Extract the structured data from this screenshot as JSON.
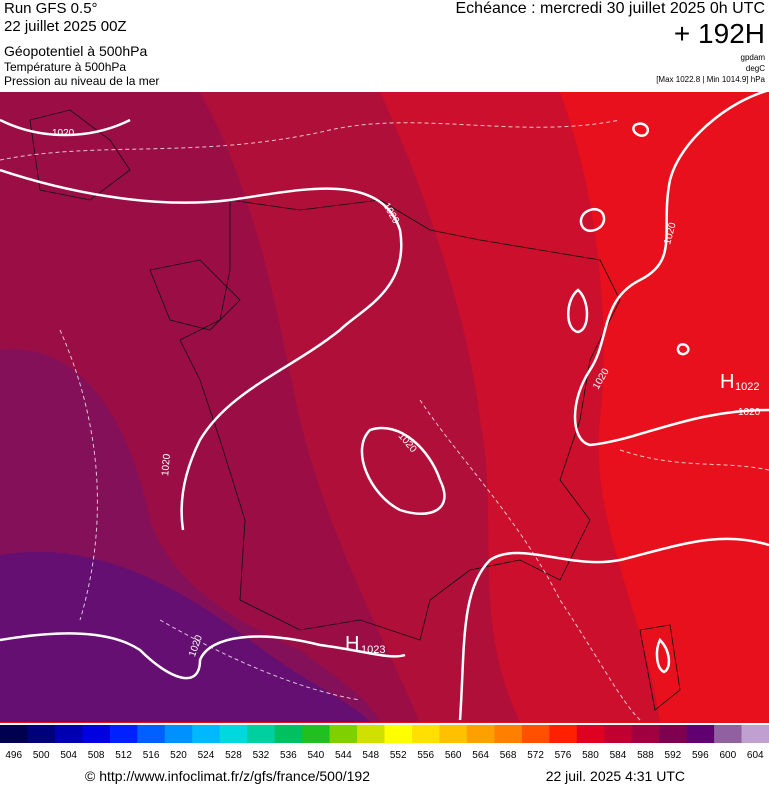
{
  "header": {
    "run": "Run GFS 0.5°",
    "date": "22 juillet 2025 00Z",
    "layer1": "Géopotentiel à 500hPa",
    "layer2": "Température à 500hPa",
    "layer3": "Pression au niveau de la mer",
    "valid": "Echéance : mercredi 30 juillet 2025 0h UTC",
    "lead": "+ 192H",
    "unit1": "gpdam",
    "unit2": "degC",
    "range": "[Max 1022.8 | Min 1014.9] hPa"
  },
  "map": {
    "isobar_labels": [
      "1020",
      "1020",
      "1020",
      "1020",
      "1020",
      "1020",
      "1020",
      "1020"
    ],
    "highs": [
      {
        "symbol": "H",
        "value": "1022"
      },
      {
        "symbol": "H",
        "value": "1023"
      }
    ]
  },
  "legend": {
    "values": [
      496,
      500,
      504,
      508,
      512,
      516,
      520,
      524,
      528,
      532,
      536,
      540,
      544,
      548,
      552,
      556,
      560,
      564,
      568,
      572,
      576,
      580,
      584,
      588,
      592,
      596,
      600,
      604
    ],
    "colors": [
      "#000050",
      "#00007a",
      "#0000b0",
      "#0000e0",
      "#0020ff",
      "#0060ff",
      "#0090ff",
      "#00b8ff",
      "#00d8e0",
      "#00d0a0",
      "#00c060",
      "#20c020",
      "#80d000",
      "#d0e000",
      "#ffff00",
      "#ffe000",
      "#ffc000",
      "#ffa000",
      "#ff8000",
      "#ff5000",
      "#ff2000",
      "#e00020",
      "#c00030",
      "#a00040",
      "#800050",
      "#600070",
      "#9060a0",
      "#c0a0d0"
    ]
  },
  "footer": {
    "url": "© http://www.infoclimat.fr/z/gfs/france/500/192",
    "stamp": "22 juil. 2025  4:31 UTC"
  }
}
